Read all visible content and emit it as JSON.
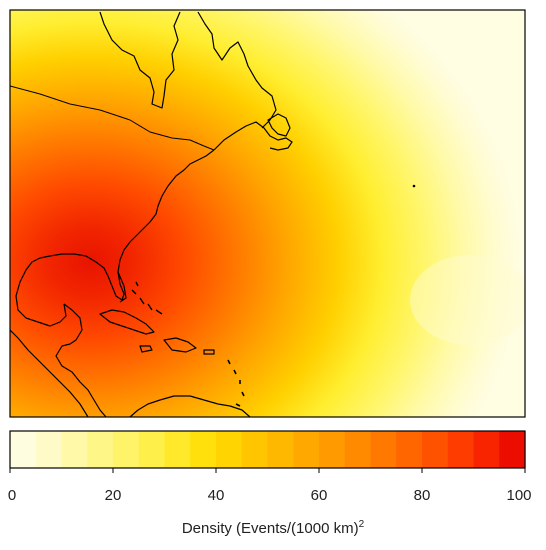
{
  "map": {
    "colors": {
      "ocean_outer": "#fffde2",
      "coast": "#000000",
      "frame": "#000000"
    }
  },
  "legend": {
    "title_text": "Density (Events/(1000 km)",
    "title_superscript": "2",
    "range": [
      0,
      100
    ],
    "ticks": [
      "0",
      "20",
      "40",
      "60",
      "80",
      "100"
    ],
    "bins": [
      "#fffde0",
      "#fffbc8",
      "#fff9a8",
      "#fff688",
      "#fff36a",
      "#ffef4a",
      "#ffe92a",
      "#ffe00c",
      "#ffd400",
      "#ffc600",
      "#ffb800",
      "#ffa900",
      "#ff9a00",
      "#ff8a00",
      "#ff7900",
      "#ff6600",
      "#ff5200",
      "#ff3c00",
      "#f82400",
      "#ec0c00"
    ]
  }
}
